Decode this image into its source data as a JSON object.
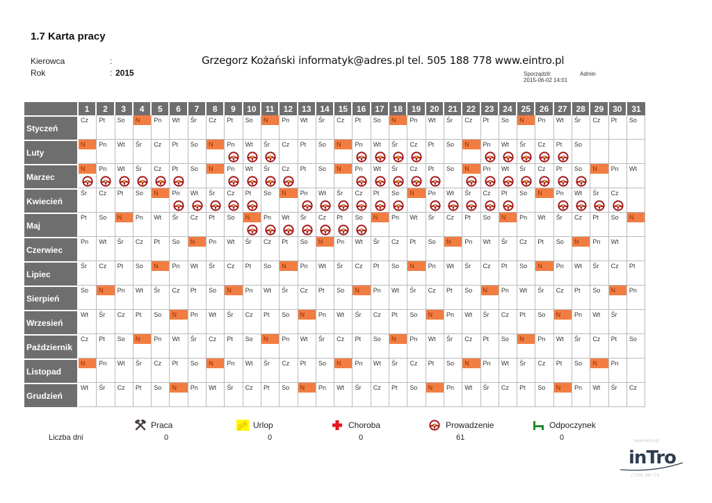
{
  "header": {
    "title": "1.7 Karta pracy",
    "driver_label": "Kierowca",
    "driver_value": "",
    "year_label": "Rok",
    "year_value": "2015",
    "separator": ":",
    "contact": "Grzegorz Kożański informatyk@adres.pl tel. 505 188 778 www.eintro.pl",
    "prepared_label": "Sporządził:",
    "prepared_by": "Admin",
    "prepared_date": "2015-06-02 14:01"
  },
  "grid": {
    "day_numbers": [
      "1",
      "2",
      "3",
      "4",
      "5",
      "6",
      "7",
      "8",
      "9",
      "10",
      "11",
      "12",
      "13",
      "14",
      "15",
      "16",
      "17",
      "18",
      "19",
      "20",
      "21",
      "22",
      "23",
      "24",
      "25",
      "26",
      "27",
      "28",
      "29",
      "30",
      "31"
    ],
    "sunday_abbr": "N",
    "highlight_color": "#f27d42",
    "months": [
      {
        "name": "Styczeń",
        "days": [
          "Cz",
          "Pt",
          "So",
          "N",
          "Pn",
          "Wt",
          "Śr",
          "Cz",
          "Pt",
          "So",
          "N",
          "Pn",
          "Wt",
          "Śr",
          "Cz",
          "Pt",
          "So",
          "N",
          "Pn",
          "Wt",
          "Śr",
          "Cz",
          "Pt",
          "So",
          "N",
          "Pn",
          "Wt",
          "Śr",
          "Cz",
          "Pt",
          "So"
        ],
        "driving": []
      },
      {
        "name": "Luty",
        "days": [
          "N",
          "Pn",
          "Wt",
          "Śr",
          "Cz",
          "Pt",
          "So",
          "N",
          "Pn",
          "Wt",
          "Śr",
          "Cz",
          "Pt",
          "So",
          "N",
          "Pn",
          "Wt",
          "Śr",
          "Cz",
          "Pt",
          "So",
          "N",
          "Pn",
          "Wt",
          "Śr",
          "Cz",
          "Pt",
          "So"
        ],
        "driving": [
          9,
          10,
          11,
          16,
          17,
          18,
          19,
          23,
          24,
          25,
          26,
          27
        ]
      },
      {
        "name": "Marzec",
        "days": [
          "N",
          "Pn",
          "Wt",
          "Śr",
          "Cz",
          "Pt",
          "So",
          "N",
          "Pn",
          "Wt",
          "Śr",
          "Cz",
          "Pt",
          "So",
          "N",
          "Pn",
          "Wt",
          "Śr",
          "Cz",
          "Pt",
          "So",
          "N",
          "Pn",
          "Wt",
          "Śr",
          "Cz",
          "Pt",
          "So",
          "N",
          "Pn",
          "Wt"
        ],
        "driving": [
          1,
          2,
          3,
          4,
          5,
          6,
          9,
          10,
          11,
          12,
          16,
          17,
          18,
          19,
          20,
          22,
          23,
          24,
          25,
          26,
          27,
          28
        ]
      },
      {
        "name": "Kwiecień",
        "days": [
          "Śr",
          "Cz",
          "Pt",
          "So",
          "N",
          "Pn",
          "Wt",
          "Śr",
          "Cz",
          "Pt",
          "So",
          "N",
          "Pn",
          "Wt",
          "Śr",
          "Cz",
          "Pt",
          "So",
          "N",
          "Pn",
          "Wt",
          "Śr",
          "Cz",
          "Pt",
          "So",
          "N",
          "Pn",
          "Wt",
          "Śr",
          "Cz"
        ],
        "driving": [
          6,
          7,
          8,
          9,
          10,
          13,
          14,
          15,
          16,
          17,
          18,
          20,
          21,
          22,
          23,
          24,
          27,
          28,
          29,
          30
        ]
      },
      {
        "name": "Maj",
        "days": [
          "Pt",
          "So",
          "N",
          "Pn",
          "Wt",
          "Śr",
          "Cz",
          "Pt",
          "So",
          "N",
          "Pn",
          "Wt",
          "Śr",
          "Cz",
          "Pt",
          "So",
          "N",
          "Pn",
          "Wt",
          "Śr",
          "Cz",
          "Pt",
          "So",
          "N",
          "Pn",
          "Wt",
          "Śr",
          "Cz",
          "Pt",
          "So",
          "N"
        ],
        "driving": [
          10,
          11,
          12,
          13,
          14,
          15,
          16
        ]
      },
      {
        "name": "Czerwiec",
        "days": [
          "Pn",
          "Wt",
          "Śr",
          "Cz",
          "Pt",
          "So",
          "N",
          "Pn",
          "Wt",
          "Śr",
          "Cz",
          "Pt",
          "So",
          "N",
          "Pn",
          "Wt",
          "Śr",
          "Cz",
          "Pt",
          "So",
          "N",
          "Pn",
          "Wt",
          "Śr",
          "Cz",
          "Pt",
          "So",
          "N",
          "Pn",
          "Wt"
        ],
        "driving": []
      },
      {
        "name": "Lipiec",
        "days": [
          "Śr",
          "Cz",
          "Pt",
          "So",
          "N",
          "Pn",
          "Wt",
          "Śr",
          "Cz",
          "Pt",
          "So",
          "N",
          "Pn",
          "Wt",
          "Śr",
          "Cz",
          "Pt",
          "So",
          "N",
          "Pn",
          "Wt",
          "Śr",
          "Cz",
          "Pt",
          "So",
          "N",
          "Pn",
          "Wt",
          "Śr",
          "Cz",
          "Pt"
        ],
        "driving": []
      },
      {
        "name": "Sierpień",
        "days": [
          "So",
          "N",
          "Pn",
          "Wt",
          "Śr",
          "Cz",
          "Pt",
          "So",
          "N",
          "Pn",
          "Wt",
          "Śr",
          "Cz",
          "Pt",
          "So",
          "N",
          "Pn",
          "Wt",
          "Śr",
          "Cz",
          "Pt",
          "So",
          "N",
          "Pn",
          "Wt",
          "Śr",
          "Cz",
          "Pt",
          "So",
          "N",
          "Pn"
        ],
        "driving": []
      },
      {
        "name": "Wrzesień",
        "days": [
          "Wt",
          "Śr",
          "Cz",
          "Pt",
          "So",
          "N",
          "Pn",
          "Wt",
          "Śr",
          "Cz",
          "Pt",
          "So",
          "N",
          "Pn",
          "Wt",
          "Śr",
          "Cz",
          "Pt",
          "So",
          "N",
          "Pn",
          "Wt",
          "Śr",
          "Cz",
          "Pt",
          "So",
          "N",
          "Pn",
          "Wt",
          "Śr"
        ],
        "driving": []
      },
      {
        "name": "Październik",
        "days": [
          "Cz",
          "Pt",
          "So",
          "N",
          "Pn",
          "Wt",
          "Śr",
          "Cz",
          "Pt",
          "So",
          "N",
          "Pn",
          "Wt",
          "Śr",
          "Cz",
          "Pt",
          "So",
          "N",
          "Pn",
          "Wt",
          "Śr",
          "Cz",
          "Pt",
          "So",
          "N",
          "Pn",
          "Wt",
          "Śr",
          "Cz",
          "Pt",
          "So"
        ],
        "driving": []
      },
      {
        "name": "Listopad",
        "days": [
          "N",
          "Pn",
          "Wt",
          "Śr",
          "Cz",
          "Pt",
          "So",
          "N",
          "Pn",
          "Wt",
          "Śr",
          "Cz",
          "Pt",
          "So",
          "N",
          "Pn",
          "Wt",
          "Śr",
          "Cz",
          "Pt",
          "So",
          "N",
          "Pn",
          "Wt",
          "Śr",
          "Cz",
          "Pt",
          "So",
          "N",
          "Pn"
        ],
        "driving": []
      },
      {
        "name": "Grudzień",
        "days": [
          "Wt",
          "Śr",
          "Cz",
          "Pt",
          "So",
          "N",
          "Pn",
          "Wt",
          "Śr",
          "Cz",
          "Pt",
          "So",
          "N",
          "Pn",
          "Wt",
          "Śr",
          "Cz",
          "Pt",
          "So",
          "N",
          "Pn",
          "Wt",
          "Śr",
          "Cz",
          "Pt",
          "So",
          "N",
          "Pn",
          "Wt",
          "Śr",
          "Cz"
        ],
        "driving": []
      }
    ]
  },
  "legend": {
    "days_label": "Liczba dni",
    "items": [
      {
        "icon": "hammers-icon",
        "label": "Praca",
        "count": "0"
      },
      {
        "icon": "sun-icon",
        "label": "Urlop",
        "count": "0"
      },
      {
        "icon": "red-cross-icon",
        "label": "Choroba",
        "count": "0"
      },
      {
        "icon": "steering-wheel-icon",
        "label": "Prowadzenie",
        "count": "61"
      },
      {
        "icon": "bed-icon",
        "label": "Odpoczynek",
        "count": "0"
      }
    ]
  },
  "logo": {
    "text": "inTro",
    "url_text": "www.eintro.pl",
    "phone_text": "(T.505 188 778"
  }
}
